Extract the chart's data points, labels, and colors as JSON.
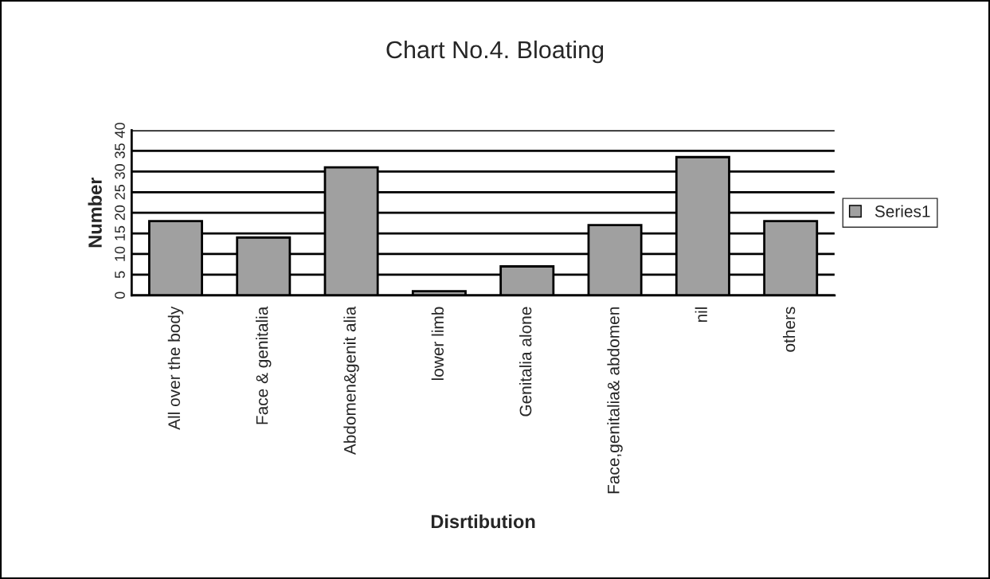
{
  "chart_data": {
    "type": "bar",
    "title": "Chart No.4. Bloating",
    "xlabel": "Disrtibution",
    "ylabel": "Number",
    "categories": [
      "All over the body",
      "Face & genitalia",
      "Abdomen&genit alia",
      "lower limb",
      "Genitalia alone",
      "Face,genitalia& abdomen",
      "nil",
      "others"
    ],
    "series": [
      {
        "name": "Series1",
        "color": "#a0a0a0",
        "values": [
          18,
          14,
          31,
          1,
          7,
          17,
          33.5,
          18
        ]
      }
    ],
    "ylim": [
      0,
      40
    ],
    "yticks": [
      0,
      5,
      10,
      15,
      20,
      25,
      30,
      35,
      40
    ],
    "grid": "y",
    "legend": "right"
  }
}
